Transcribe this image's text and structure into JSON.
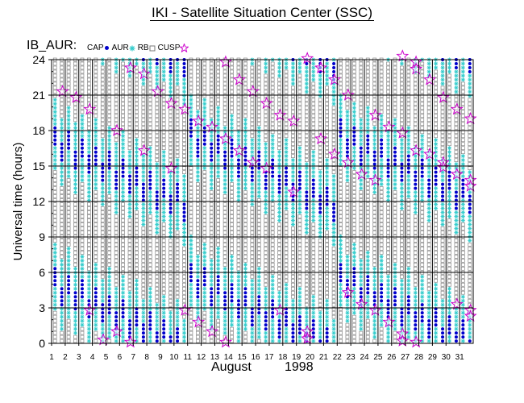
{
  "title": "IKI - Satellite Situation Center (SSC)",
  "panel_label": "IB_AUR:",
  "legend": [
    {
      "name": "CAP",
      "symbol": "dot",
      "color": "#0000cc"
    },
    {
      "name": "AUR",
      "symbol": "asterisk",
      "color": "#33cccc"
    },
    {
      "name": "RB",
      "symbol": "square",
      "color": "#888888"
    },
    {
      "name": "CUSP",
      "symbol": "star",
      "color": "#cc00cc"
    }
  ],
  "chart_data": {
    "type": "scatter",
    "title": "IKI - Satellite Situation Center (SSC)",
    "xlabel": "August",
    "xlabel_year": "1998",
    "ylabel": "Universal time (hours)",
    "xlim": [
      1,
      32
    ],
    "ylim": [
      0,
      24
    ],
    "x_ticks": [
      "1",
      "2",
      "3",
      "4",
      "5",
      "6",
      "7",
      "8",
      "9",
      "10",
      "11",
      "12",
      "13",
      "14",
      "15",
      "16",
      "17",
      "18",
      "19",
      "20",
      "21",
      "22",
      "23",
      "24",
      "25",
      "26",
      "27",
      "28",
      "29",
      "30",
      "31"
    ],
    "y_ticks": [
      "0",
      "3",
      "6",
      "9",
      "12",
      "15",
      "18",
      "21",
      "24"
    ],
    "grid": true,
    "colors": {
      "CAP": "#0000cc",
      "AUR": "#33cccc",
      "RB": "#888888",
      "CUSP": "#cc00cc"
    },
    "cusp_points": [
      [
        1.8,
        21.3
      ],
      [
        2.8,
        20.8
      ],
      [
        3.8,
        19.8
      ],
      [
        3.8,
        2.8
      ],
      [
        4.8,
        0.3
      ],
      [
        5.8,
        18.0
      ],
      [
        5.8,
        1.0
      ],
      [
        6.8,
        23.3
      ],
      [
        6.8,
        0.1
      ],
      [
        7.8,
        22.8
      ],
      [
        7.8,
        16.3
      ],
      [
        8.8,
        21.3
      ],
      [
        9.8,
        20.3
      ],
      [
        9.8,
        14.8
      ],
      [
        10.8,
        19.8
      ],
      [
        10.8,
        2.8
      ],
      [
        11.8,
        18.8
      ],
      [
        11.8,
        1.8
      ],
      [
        12.8,
        18.3
      ],
      [
        12.8,
        1.0
      ],
      [
        13.8,
        23.8
      ],
      [
        13.8,
        17.3
      ],
      [
        13.8,
        0.1
      ],
      [
        14.8,
        22.3
      ],
      [
        14.8,
        16.3
      ],
      [
        15.8,
        21.3
      ],
      [
        15.8,
        15.3
      ],
      [
        16.8,
        20.3
      ],
      [
        16.8,
        14.8
      ],
      [
        17.8,
        19.3
      ],
      [
        17.8,
        2.8
      ],
      [
        18.8,
        18.8
      ],
      [
        18.8,
        12.8
      ],
      [
        19.8,
        24.1
      ],
      [
        19.8,
        1.0
      ],
      [
        19.8,
        0.4
      ],
      [
        20.8,
        23.3
      ],
      [
        20.8,
        17.3
      ],
      [
        21.8,
        22.3
      ],
      [
        21.8,
        16.0
      ],
      [
        22.8,
        21.0
      ],
      [
        22.8,
        15.3
      ],
      [
        22.8,
        4.3
      ],
      [
        23.8,
        14.3
      ],
      [
        23.8,
        3.3
      ],
      [
        24.8,
        19.3
      ],
      [
        24.8,
        13.8
      ],
      [
        24.8,
        2.8
      ],
      [
        25.8,
        18.3
      ],
      [
        25.8,
        1.8
      ],
      [
        26.8,
        24.3
      ],
      [
        26.8,
        17.8
      ],
      [
        26.8,
        0.8
      ],
      [
        26.8,
        0.2
      ],
      [
        27.8,
        23.8
      ],
      [
        27.8,
        23.2
      ],
      [
        27.8,
        16.3
      ],
      [
        27.8,
        0.1
      ],
      [
        28.8,
        22.3
      ],
      [
        28.8,
        16.0
      ],
      [
        29.8,
        20.8
      ],
      [
        29.8,
        15.3
      ],
      [
        29.8,
        14.9
      ],
      [
        30.8,
        19.8
      ],
      [
        30.8,
        14.3
      ],
      [
        30.8,
        3.3
      ],
      [
        31.8,
        19.0
      ],
      [
        31.8,
        13.8
      ],
      [
        31.8,
        13.3
      ],
      [
        31.8,
        2.8
      ],
      [
        31.8,
        2.3
      ]
    ]
  }
}
